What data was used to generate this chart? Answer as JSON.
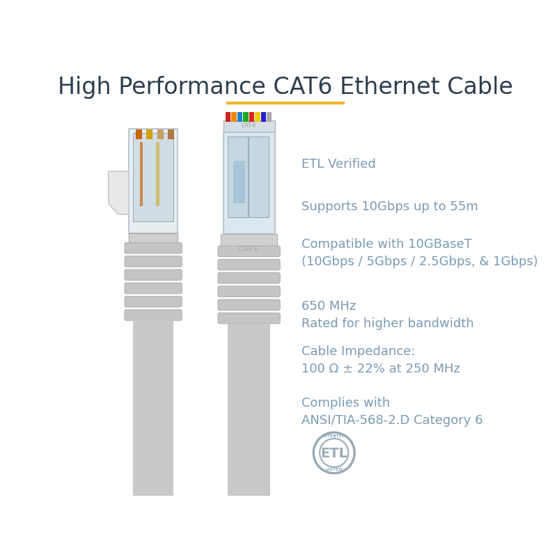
{
  "title": "High Performance CAT6 Ethernet Cable",
  "title_color": "#2d3e50",
  "title_fontsize": 24,
  "underline_color": "#f0b429",
  "bg_color": "#ffffff",
  "specs": [
    {
      "text": "ETL Verified",
      "fontsize": 13
    },
    {
      "text": "Supports 10Gbps up to 55m",
      "fontsize": 13
    },
    {
      "text": "Compatible with 10GBaseT\n(10Gbps / 5Gbps / 2.5Gbps, & 1Gbps)",
      "fontsize": 13
    },
    {
      "text": "650 MHz\nRated for higher bandwidth",
      "fontsize": 13
    },
    {
      "text": "Cable Impedance:\n100 Ω ± 22% at 250 MHz",
      "fontsize": 13
    },
    {
      "text": "Complies with\nANSI/TIA-568-2.D Category 6",
      "fontsize": 13
    }
  ],
  "spec_color": "#7a9ab5",
  "etl_color": "#9aabb8",
  "cable_gray": "#c8c8c8",
  "cable_light": "#d8d8d8",
  "cable_mid": "#b8b8b8",
  "connector_clear": "#dce8f0",
  "connector_rim": "#b0bfc8"
}
